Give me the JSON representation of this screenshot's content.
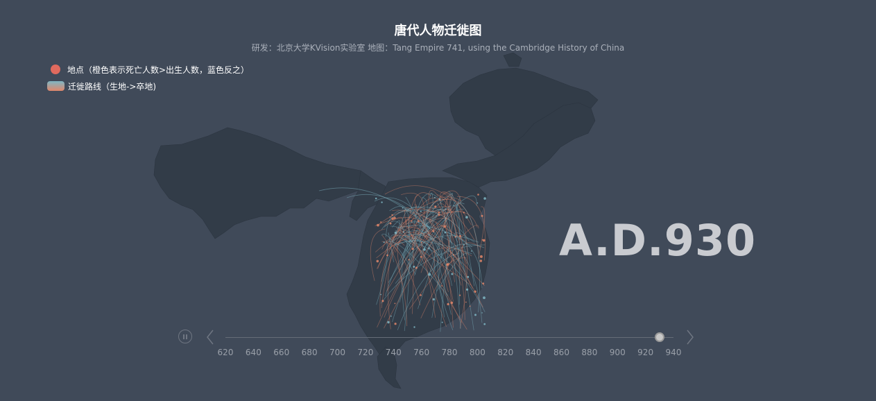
{
  "title": "唐代人物迁徙图",
  "subtitle": "研发：北京大学KVision实验室  地图：Tang Empire 741, using the Cambridge History of China",
  "legend": {
    "places_label": "地点（橙色表示死亡人数>出生人数，蓝色反之）",
    "routes_label": "迁徙路线（生地->卒地)"
  },
  "colors": {
    "background": "#404a59",
    "land": "#323c48",
    "death_orange": "#e0866a",
    "birth_blue": "#7fb6c4",
    "legend_dot": "#e06a5e"
  },
  "year_display": "A.D.930",
  "timeline": {
    "ticks": [
      "620",
      "640",
      "660",
      "680",
      "700",
      "720",
      "740",
      "760",
      "780",
      "800",
      "820",
      "840",
      "860",
      "880",
      "900",
      "920",
      "940"
    ],
    "current_year": 930,
    "min_year": 620,
    "max_year": 940
  },
  "icons": {
    "play": "pause-icon",
    "prev": "chevron-left-icon",
    "next": "chevron-right-icon"
  }
}
